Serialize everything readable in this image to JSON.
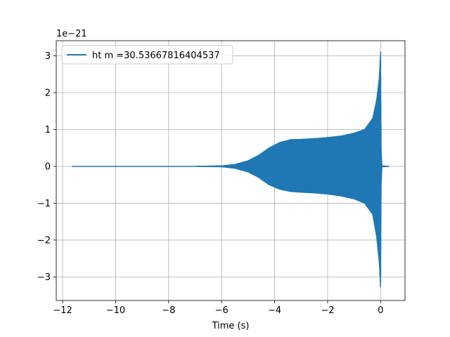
{
  "chart_data": {
    "type": "line",
    "title": "",
    "xlabel": "Time (s)",
    "ylabel": "",
    "y_offset_label": "1e−21",
    "xlim": [
      -12.24,
      0.92
    ],
    "ylim": [
      -3.64,
      3.41
    ],
    "x_ticks": [
      -12,
      -10,
      -8,
      -6,
      -4,
      -2,
      0
    ],
    "x_tick_labels": [
      "−12",
      "−10",
      "−8",
      "−6",
      "−4",
      "−2",
      "0"
    ],
    "y_ticks": [
      -3,
      -2,
      -1,
      0,
      1,
      2,
      3
    ],
    "y_tick_labels": [
      "−3",
      "−2",
      "−1",
      "0",
      "1",
      "2",
      "3"
    ],
    "grid": true,
    "legend_position": "top-left",
    "series": [
      {
        "name": "ht m =30.53667816404537",
        "color": "#1f77b4",
        "style": "chirp-oscillation",
        "x_start": -11.65,
        "merger_time": 0.0,
        "x_end": 0.32,
        "envelope": {
          "x": [
            -11.65,
            -7.0,
            -6.0,
            -5.5,
            -5.0,
            -4.6,
            -4.2,
            -3.8,
            -3.4,
            -3.0,
            -2.5,
            -2.0,
            -1.5,
            -1.0,
            -0.6,
            -0.3,
            -0.15,
            -0.05,
            0.0,
            0.02,
            0.05,
            0.32
          ],
          "upper": [
            0.0,
            0.0,
            0.01,
            0.05,
            0.15,
            0.3,
            0.5,
            0.65,
            0.72,
            0.73,
            0.75,
            0.78,
            0.82,
            0.9,
            1.0,
            1.3,
            1.8,
            2.4,
            3.1,
            0.5,
            0.01,
            0.0
          ],
          "lower": [
            0.0,
            0.0,
            -0.01,
            -0.05,
            -0.15,
            -0.3,
            -0.5,
            -0.62,
            -0.68,
            -0.7,
            -0.72,
            -0.75,
            -0.8,
            -0.88,
            -1.0,
            -1.3,
            -1.9,
            -2.6,
            -3.3,
            -0.5,
            -0.01,
            0.0
          ]
        }
      }
    ]
  }
}
